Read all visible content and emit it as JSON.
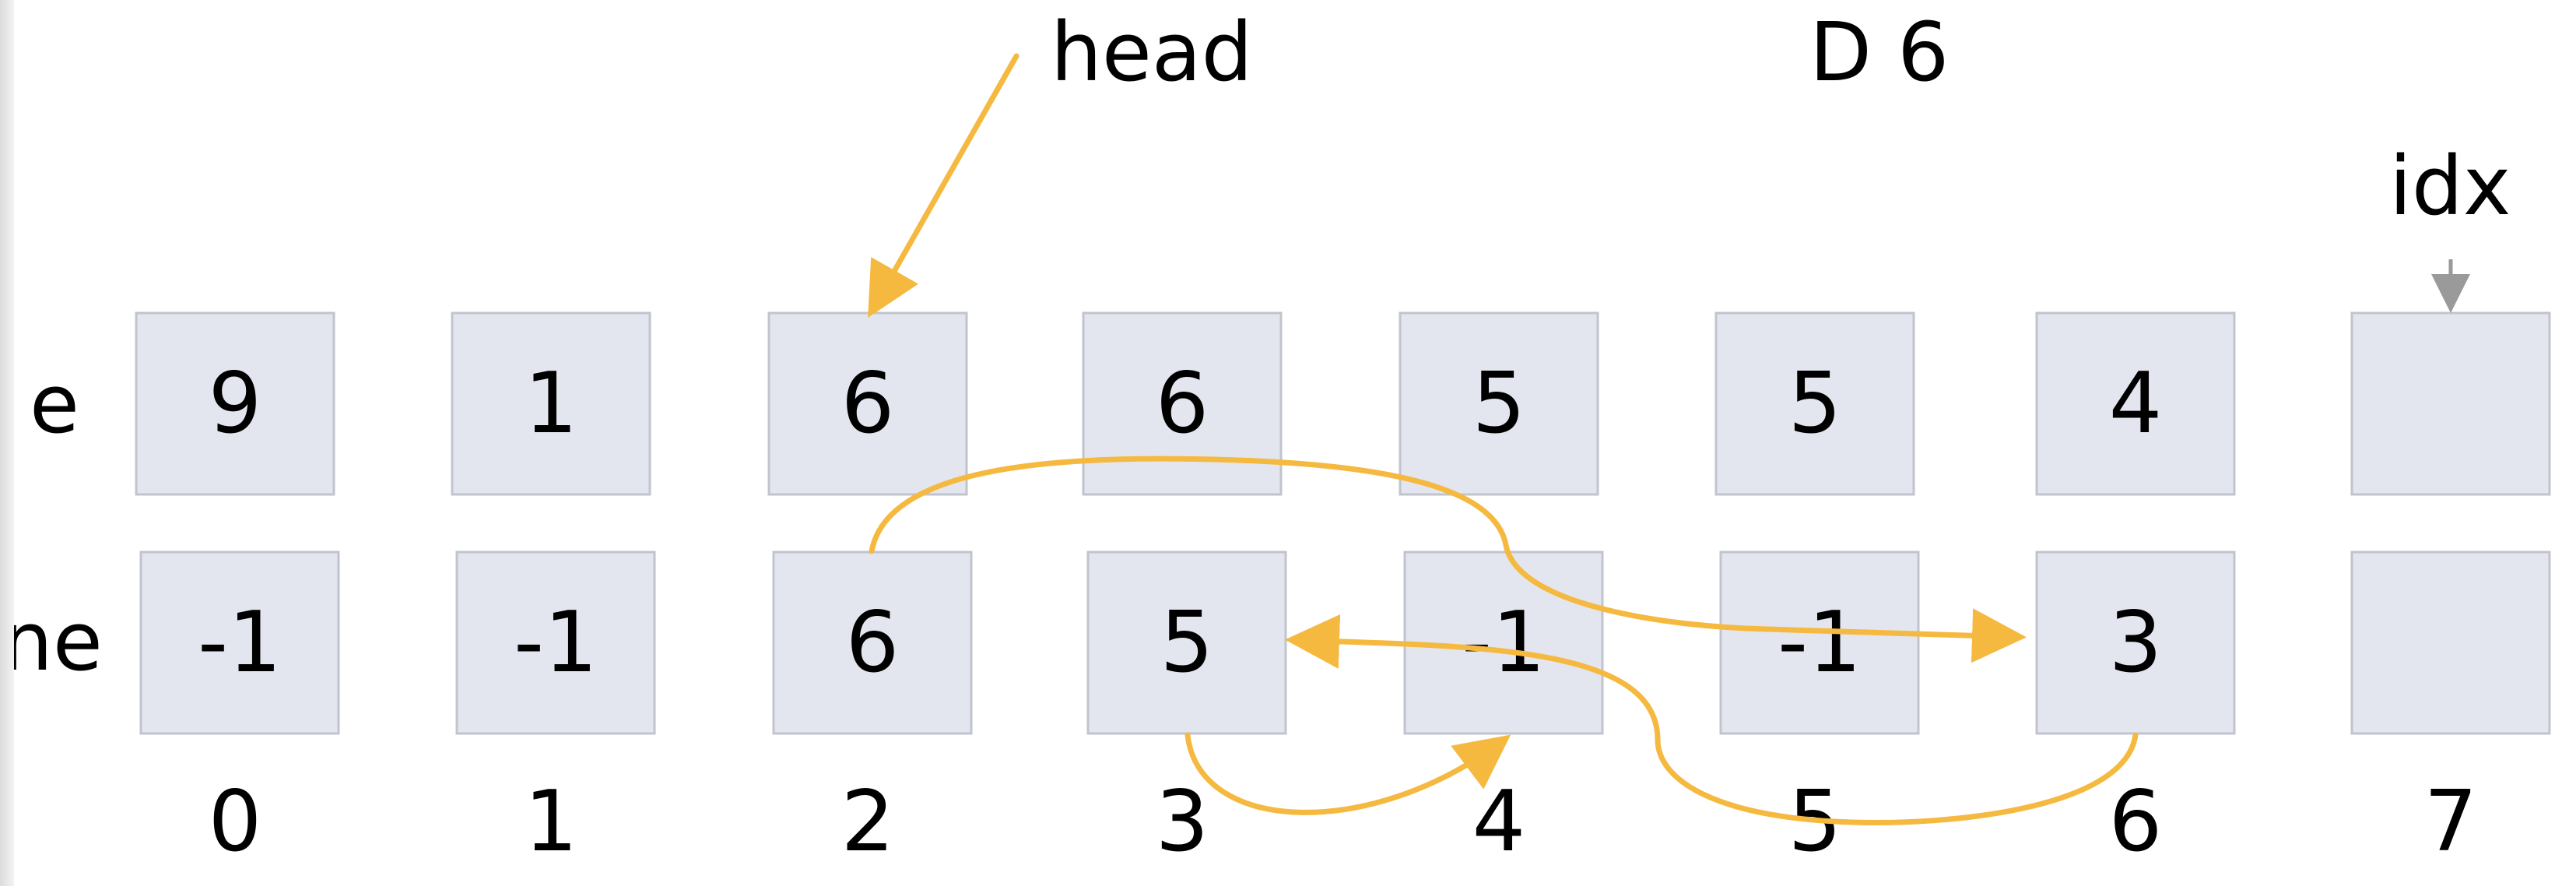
{
  "labels": {
    "head": "head",
    "step": "D 6",
    "idx": "idx",
    "e_row": "e",
    "ne_row": "ne"
  },
  "e": [
    "9",
    "1",
    "6",
    "6",
    "5",
    "5",
    "4",
    ""
  ],
  "ne": [
    "-1",
    "-1",
    "6",
    "5",
    "-1",
    "-1",
    "3",
    ""
  ],
  "indices": [
    "0",
    "1",
    "2",
    "3",
    "4",
    "5",
    "6",
    "7"
  ],
  "colors": {
    "arrow": "#f5b940",
    "idx_arrow": "#9a9a9a",
    "cell_fill": "#e3e6ee",
    "cell_border": "#c1c4cc"
  }
}
